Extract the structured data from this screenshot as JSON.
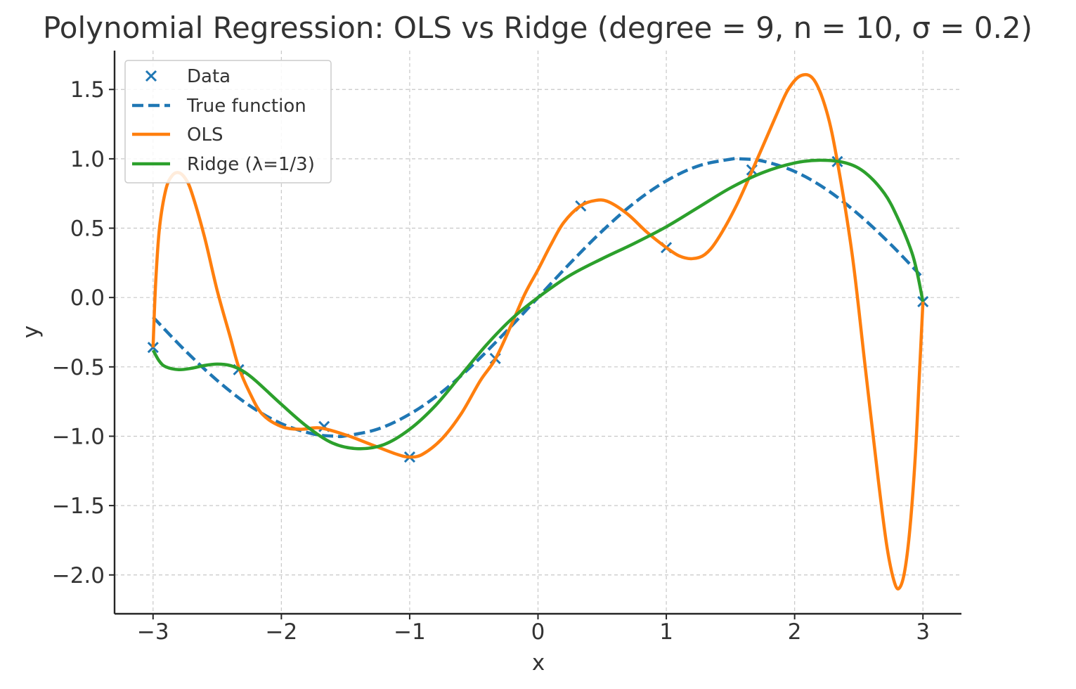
{
  "chart_data": {
    "type": "line",
    "title": "Polynomial Regression: OLS vs Ridge (degree = 9, n = 10, σ = 0.2)",
    "xlabel": "x",
    "ylabel": "y",
    "xlim": [
      -3.3,
      3.3
    ],
    "ylim": [
      -2.28,
      1.78
    ],
    "x_ticks": [
      -3,
      -2,
      -1,
      0,
      1,
      2,
      3
    ],
    "y_ticks": [
      -2.0,
      -1.5,
      -1.0,
      -0.5,
      0.0,
      0.5,
      1.0,
      1.5
    ],
    "x_tick_labels": [
      "−3",
      "−2",
      "−1",
      "0",
      "1",
      "2",
      "3"
    ],
    "y_tick_labels": [
      "−2.0",
      "−1.5",
      "−1.0",
      "−0.5",
      "0.0",
      "0.5",
      "1.0",
      "1.5"
    ],
    "grid": true,
    "legend_position": "top-left",
    "series": [
      {
        "name": "Data",
        "kind": "scatter",
        "marker": "x",
        "color": "#1f77b4",
        "points": [
          [
            -3.0,
            -0.36
          ],
          [
            -2.333,
            -0.52
          ],
          [
            -1.667,
            -0.93
          ],
          [
            -1.0,
            -1.15
          ],
          [
            -0.333,
            -0.44
          ],
          [
            0.333,
            0.66
          ],
          [
            1.0,
            0.36
          ],
          [
            1.667,
            0.92
          ],
          [
            2.333,
            0.98
          ],
          [
            3.0,
            -0.03
          ]
        ]
      },
      {
        "name": "True function",
        "kind": "line",
        "style": "dashed",
        "color": "#1f77b4",
        "points": [
          [
            -3.0,
            -0.141
          ],
          [
            -2.75,
            -0.382
          ],
          [
            -2.5,
            -0.598
          ],
          [
            -2.25,
            -0.778
          ],
          [
            -2.0,
            -0.909
          ],
          [
            -1.75,
            -0.984
          ],
          [
            -1.571,
            -1.0
          ],
          [
            -1.5,
            -0.997
          ],
          [
            -1.25,
            -0.949
          ],
          [
            -1.0,
            -0.841
          ],
          [
            -0.75,
            -0.682
          ],
          [
            -0.5,
            -0.479
          ],
          [
            -0.25,
            -0.247
          ],
          [
            0.0,
            0.0
          ],
          [
            0.25,
            0.247
          ],
          [
            0.5,
            0.479
          ],
          [
            0.75,
            0.682
          ],
          [
            1.0,
            0.841
          ],
          [
            1.25,
            0.949
          ],
          [
            1.5,
            0.997
          ],
          [
            1.571,
            1.0
          ],
          [
            1.75,
            0.984
          ],
          [
            2.0,
            0.909
          ],
          [
            2.25,
            0.778
          ],
          [
            2.5,
            0.598
          ],
          [
            2.75,
            0.382
          ],
          [
            3.0,
            0.141
          ]
        ]
      },
      {
        "name": "OLS",
        "kind": "line",
        "color": "#ff7f0e",
        "points": [
          [
            -3.0,
            -0.36
          ],
          [
            -2.98,
            0.1
          ],
          [
            -2.95,
            0.5
          ],
          [
            -2.9,
            0.78
          ],
          [
            -2.85,
            0.88
          ],
          [
            -2.8,
            0.9
          ],
          [
            -2.75,
            0.86
          ],
          [
            -2.7,
            0.76
          ],
          [
            -2.6,
            0.44
          ],
          [
            -2.5,
            0.05
          ],
          [
            -2.4,
            -0.28
          ],
          [
            -2.333,
            -0.5
          ],
          [
            -2.25,
            -0.68
          ],
          [
            -2.15,
            -0.84
          ],
          [
            -2.0,
            -0.93
          ],
          [
            -1.85,
            -0.95
          ],
          [
            -1.7,
            -0.94
          ],
          [
            -1.5,
            -0.99
          ],
          [
            -1.3,
            -1.06
          ],
          [
            -1.1,
            -1.13
          ],
          [
            -1.0,
            -1.15
          ],
          [
            -0.9,
            -1.13
          ],
          [
            -0.75,
            -1.02
          ],
          [
            -0.6,
            -0.84
          ],
          [
            -0.45,
            -0.6
          ],
          [
            -0.33,
            -0.44
          ],
          [
            -0.2,
            -0.18
          ],
          [
            -0.1,
            0.03
          ],
          [
            0.0,
            0.2
          ],
          [
            0.1,
            0.38
          ],
          [
            0.2,
            0.54
          ],
          [
            0.33,
            0.66
          ],
          [
            0.45,
            0.7
          ],
          [
            0.55,
            0.69
          ],
          [
            0.7,
            0.6
          ],
          [
            0.85,
            0.47
          ],
          [
            1.0,
            0.36
          ],
          [
            1.1,
            0.3
          ],
          [
            1.2,
            0.28
          ],
          [
            1.3,
            0.31
          ],
          [
            1.4,
            0.42
          ],
          [
            1.55,
            0.67
          ],
          [
            1.7,
            0.98
          ],
          [
            1.85,
            1.3
          ],
          [
            1.95,
            1.5
          ],
          [
            2.05,
            1.6
          ],
          [
            2.15,
            1.57
          ],
          [
            2.25,
            1.34
          ],
          [
            2.333,
            0.98
          ],
          [
            2.45,
            0.3
          ],
          [
            2.55,
            -0.5
          ],
          [
            2.65,
            -1.3
          ],
          [
            2.72,
            -1.8
          ],
          [
            2.78,
            -2.06
          ],
          [
            2.82,
            -2.09
          ],
          [
            2.86,
            -1.96
          ],
          [
            2.9,
            -1.65
          ],
          [
            2.94,
            -1.15
          ],
          [
            2.97,
            -0.6
          ],
          [
            3.0,
            -0.03
          ]
        ]
      },
      {
        "name": "Ridge (λ=1/3)",
        "kind": "line",
        "color": "#2ca02c",
        "points": [
          [
            -3.0,
            -0.38
          ],
          [
            -2.95,
            -0.46
          ],
          [
            -2.9,
            -0.5
          ],
          [
            -2.8,
            -0.52
          ],
          [
            -2.7,
            -0.51
          ],
          [
            -2.6,
            -0.49
          ],
          [
            -2.5,
            -0.48
          ],
          [
            -2.4,
            -0.49
          ],
          [
            -2.3,
            -0.53
          ],
          [
            -2.2,
            -0.6
          ],
          [
            -2.0,
            -0.77
          ],
          [
            -1.8,
            -0.93
          ],
          [
            -1.6,
            -1.05
          ],
          [
            -1.4,
            -1.09
          ],
          [
            -1.2,
            -1.06
          ],
          [
            -1.0,
            -0.95
          ],
          [
            -0.8,
            -0.78
          ],
          [
            -0.6,
            -0.56
          ],
          [
            -0.4,
            -0.34
          ],
          [
            -0.2,
            -0.15
          ],
          [
            0.0,
            0.0
          ],
          [
            0.25,
            0.16
          ],
          [
            0.5,
            0.28
          ],
          [
            0.75,
            0.39
          ],
          [
            1.0,
            0.51
          ],
          [
            1.25,
            0.65
          ],
          [
            1.5,
            0.79
          ],
          [
            1.75,
            0.9
          ],
          [
            2.0,
            0.97
          ],
          [
            2.2,
            0.99
          ],
          [
            2.4,
            0.97
          ],
          [
            2.55,
            0.9
          ],
          [
            2.7,
            0.75
          ],
          [
            2.8,
            0.58
          ],
          [
            2.9,
            0.36
          ],
          [
            2.95,
            0.2
          ],
          [
            3.0,
            -0.03
          ]
        ]
      }
    ]
  }
}
